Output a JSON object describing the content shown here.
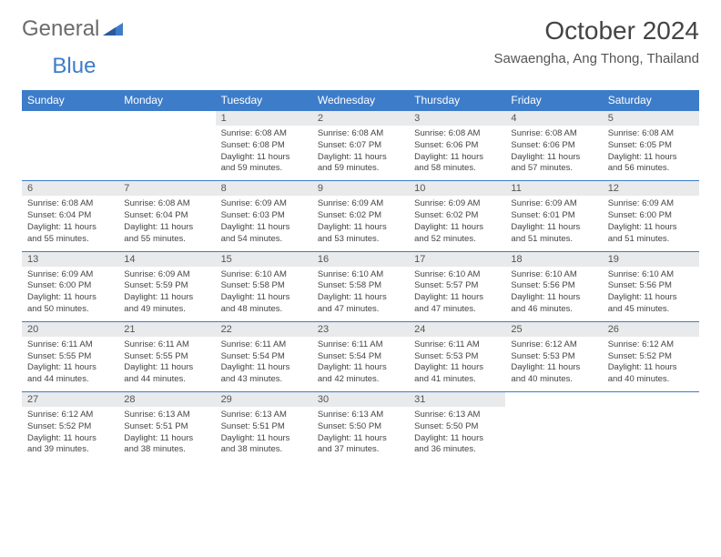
{
  "logo": {
    "text1": "General",
    "text2": "Blue",
    "color1": "#6b6b6b",
    "color2": "#3d7cc9"
  },
  "title": "October 2024",
  "location": "Sawaengha, Ang Thong, Thailand",
  "colors": {
    "header_bg": "#3d7cc9",
    "header_text": "#ffffff",
    "daynum_bg": "#e9eaeb",
    "row_border": "#3d7cc9",
    "body_text": "#444444"
  },
  "fonts": {
    "title_size": 28,
    "location_size": 15,
    "header_size": 12,
    "body_size": 9.5
  },
  "day_headers": [
    "Sunday",
    "Monday",
    "Tuesday",
    "Wednesday",
    "Thursday",
    "Friday",
    "Saturday"
  ],
  "weeks": [
    [
      {
        "num": "",
        "sunrise": "",
        "sunset": "",
        "daylight": ""
      },
      {
        "num": "",
        "sunrise": "",
        "sunset": "",
        "daylight": ""
      },
      {
        "num": "1",
        "sunrise": "Sunrise: 6:08 AM",
        "sunset": "Sunset: 6:08 PM",
        "daylight": "Daylight: 11 hours and 59 minutes."
      },
      {
        "num": "2",
        "sunrise": "Sunrise: 6:08 AM",
        "sunset": "Sunset: 6:07 PM",
        "daylight": "Daylight: 11 hours and 59 minutes."
      },
      {
        "num": "3",
        "sunrise": "Sunrise: 6:08 AM",
        "sunset": "Sunset: 6:06 PM",
        "daylight": "Daylight: 11 hours and 58 minutes."
      },
      {
        "num": "4",
        "sunrise": "Sunrise: 6:08 AM",
        "sunset": "Sunset: 6:06 PM",
        "daylight": "Daylight: 11 hours and 57 minutes."
      },
      {
        "num": "5",
        "sunrise": "Sunrise: 6:08 AM",
        "sunset": "Sunset: 6:05 PM",
        "daylight": "Daylight: 11 hours and 56 minutes."
      }
    ],
    [
      {
        "num": "6",
        "sunrise": "Sunrise: 6:08 AM",
        "sunset": "Sunset: 6:04 PM",
        "daylight": "Daylight: 11 hours and 55 minutes."
      },
      {
        "num": "7",
        "sunrise": "Sunrise: 6:08 AM",
        "sunset": "Sunset: 6:04 PM",
        "daylight": "Daylight: 11 hours and 55 minutes."
      },
      {
        "num": "8",
        "sunrise": "Sunrise: 6:09 AM",
        "sunset": "Sunset: 6:03 PM",
        "daylight": "Daylight: 11 hours and 54 minutes."
      },
      {
        "num": "9",
        "sunrise": "Sunrise: 6:09 AM",
        "sunset": "Sunset: 6:02 PM",
        "daylight": "Daylight: 11 hours and 53 minutes."
      },
      {
        "num": "10",
        "sunrise": "Sunrise: 6:09 AM",
        "sunset": "Sunset: 6:02 PM",
        "daylight": "Daylight: 11 hours and 52 minutes."
      },
      {
        "num": "11",
        "sunrise": "Sunrise: 6:09 AM",
        "sunset": "Sunset: 6:01 PM",
        "daylight": "Daylight: 11 hours and 51 minutes."
      },
      {
        "num": "12",
        "sunrise": "Sunrise: 6:09 AM",
        "sunset": "Sunset: 6:00 PM",
        "daylight": "Daylight: 11 hours and 51 minutes."
      }
    ],
    [
      {
        "num": "13",
        "sunrise": "Sunrise: 6:09 AM",
        "sunset": "Sunset: 6:00 PM",
        "daylight": "Daylight: 11 hours and 50 minutes."
      },
      {
        "num": "14",
        "sunrise": "Sunrise: 6:09 AM",
        "sunset": "Sunset: 5:59 PM",
        "daylight": "Daylight: 11 hours and 49 minutes."
      },
      {
        "num": "15",
        "sunrise": "Sunrise: 6:10 AM",
        "sunset": "Sunset: 5:58 PM",
        "daylight": "Daylight: 11 hours and 48 minutes."
      },
      {
        "num": "16",
        "sunrise": "Sunrise: 6:10 AM",
        "sunset": "Sunset: 5:58 PM",
        "daylight": "Daylight: 11 hours and 47 minutes."
      },
      {
        "num": "17",
        "sunrise": "Sunrise: 6:10 AM",
        "sunset": "Sunset: 5:57 PM",
        "daylight": "Daylight: 11 hours and 47 minutes."
      },
      {
        "num": "18",
        "sunrise": "Sunrise: 6:10 AM",
        "sunset": "Sunset: 5:56 PM",
        "daylight": "Daylight: 11 hours and 46 minutes."
      },
      {
        "num": "19",
        "sunrise": "Sunrise: 6:10 AM",
        "sunset": "Sunset: 5:56 PM",
        "daylight": "Daylight: 11 hours and 45 minutes."
      }
    ],
    [
      {
        "num": "20",
        "sunrise": "Sunrise: 6:11 AM",
        "sunset": "Sunset: 5:55 PM",
        "daylight": "Daylight: 11 hours and 44 minutes."
      },
      {
        "num": "21",
        "sunrise": "Sunrise: 6:11 AM",
        "sunset": "Sunset: 5:55 PM",
        "daylight": "Daylight: 11 hours and 44 minutes."
      },
      {
        "num": "22",
        "sunrise": "Sunrise: 6:11 AM",
        "sunset": "Sunset: 5:54 PM",
        "daylight": "Daylight: 11 hours and 43 minutes."
      },
      {
        "num": "23",
        "sunrise": "Sunrise: 6:11 AM",
        "sunset": "Sunset: 5:54 PM",
        "daylight": "Daylight: 11 hours and 42 minutes."
      },
      {
        "num": "24",
        "sunrise": "Sunrise: 6:11 AM",
        "sunset": "Sunset: 5:53 PM",
        "daylight": "Daylight: 11 hours and 41 minutes."
      },
      {
        "num": "25",
        "sunrise": "Sunrise: 6:12 AM",
        "sunset": "Sunset: 5:53 PM",
        "daylight": "Daylight: 11 hours and 40 minutes."
      },
      {
        "num": "26",
        "sunrise": "Sunrise: 6:12 AM",
        "sunset": "Sunset: 5:52 PM",
        "daylight": "Daylight: 11 hours and 40 minutes."
      }
    ],
    [
      {
        "num": "27",
        "sunrise": "Sunrise: 6:12 AM",
        "sunset": "Sunset: 5:52 PM",
        "daylight": "Daylight: 11 hours and 39 minutes."
      },
      {
        "num": "28",
        "sunrise": "Sunrise: 6:13 AM",
        "sunset": "Sunset: 5:51 PM",
        "daylight": "Daylight: 11 hours and 38 minutes."
      },
      {
        "num": "29",
        "sunrise": "Sunrise: 6:13 AM",
        "sunset": "Sunset: 5:51 PM",
        "daylight": "Daylight: 11 hours and 38 minutes."
      },
      {
        "num": "30",
        "sunrise": "Sunrise: 6:13 AM",
        "sunset": "Sunset: 5:50 PM",
        "daylight": "Daylight: 11 hours and 37 minutes."
      },
      {
        "num": "31",
        "sunrise": "Sunrise: 6:13 AM",
        "sunset": "Sunset: 5:50 PM",
        "daylight": "Daylight: 11 hours and 36 minutes."
      },
      {
        "num": "",
        "sunrise": "",
        "sunset": "",
        "daylight": ""
      },
      {
        "num": "",
        "sunrise": "",
        "sunset": "",
        "daylight": ""
      }
    ]
  ]
}
